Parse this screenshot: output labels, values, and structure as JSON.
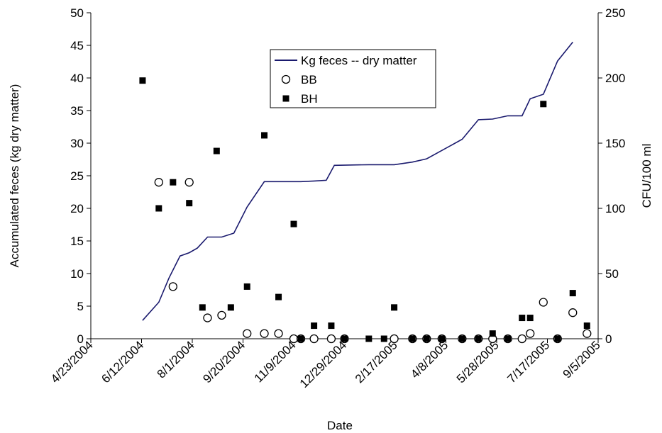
{
  "chart_data": {
    "type": "line",
    "xlabel": "Date",
    "ylabel_left": "Accumulated feces (kg dry matter)",
    "ylabel_right": "CFU/100 ml",
    "x_ticks": [
      "4/23/2004",
      "6/12/2004",
      "8/1/2004",
      "9/20/2004",
      "11/9/2004",
      "12/29/2004",
      "2/17/2005",
      "4/8/2005",
      "5/28/2005",
      "7/17/2005",
      "9/5/2005"
    ],
    "xlim": [
      "2004-04-23",
      "2005-09-05"
    ],
    "ylim_left": [
      0,
      50
    ],
    "ylim_right": [
      0,
      250
    ],
    "y_ticks_left": [
      "0",
      "5",
      "10",
      "15",
      "20",
      "25",
      "30",
      "35",
      "40",
      "45",
      "50"
    ],
    "y_ticks_right": [
      "0",
      "50",
      "100",
      "150",
      "200",
      "250"
    ],
    "grid": false,
    "legend_position": "top-center",
    "series": [
      {
        "name": "Kg feces -- dry matter",
        "kind": "line",
        "axis": "left",
        "color": "#1a1a6e",
        "x": [
          "2004-06-13",
          "2004-06-29",
          "2004-07-09",
          "2004-07-20",
          "2004-07-29",
          "2004-08-06",
          "2004-08-16",
          "2004-08-30",
          "2004-09-11",
          "2004-09-24",
          "2004-10-11",
          "2004-10-25",
          "2004-11-16",
          "2004-11-29",
          "2004-12-11",
          "2004-12-19",
          "2005-01-22",
          "2005-02-16",
          "2005-03-06",
          "2005-03-20",
          "2005-04-24",
          "2005-05-10",
          "2005-05-24",
          "2005-06-08",
          "2005-06-22",
          "2005-06-30",
          "2005-07-13",
          "2005-07-27",
          "2005-08-11"
        ],
        "y": [
          2.8,
          5.6,
          9.3,
          12.7,
          13.2,
          13.9,
          15.6,
          15.6,
          16.2,
          20.2,
          24.1,
          24.1,
          24.1,
          24.2,
          24.3,
          26.6,
          26.7,
          26.7,
          27.1,
          27.6,
          30.6,
          33.6,
          33.7,
          34.2,
          34.2,
          36.8,
          37.5,
          42.6,
          45.5
        ]
      },
      {
        "name": "BB",
        "kind": "scatter",
        "axis": "right",
        "marker": "open-circle",
        "x": [
          "2004-06-29",
          "2004-07-13",
          "2004-07-29",
          "2004-08-16",
          "2004-08-30",
          "2004-09-24",
          "2004-10-11",
          "2004-10-25",
          "2004-11-09",
          "2004-11-16",
          "2004-11-29",
          "2004-12-16",
          "2004-12-29",
          "2005-02-16",
          "2005-03-06",
          "2005-03-20",
          "2005-04-04",
          "2005-04-24",
          "2005-05-10",
          "2005-05-24",
          "2005-06-08",
          "2005-06-22",
          "2005-06-30",
          "2005-07-13",
          "2005-07-27",
          "2005-08-11",
          "2005-08-25"
        ],
        "y": [
          120,
          40,
          120,
          16,
          18,
          4,
          4,
          4,
          0,
          0,
          0,
          0,
          0,
          0,
          0,
          0,
          0,
          0,
          0,
          0,
          0,
          0,
          4,
          28,
          0,
          20,
          4
        ]
      },
      {
        "name": "BH",
        "kind": "scatter",
        "axis": "right",
        "marker": "filled-square",
        "x": [
          "2004-06-13",
          "2004-06-29",
          "2004-07-13",
          "2004-07-29",
          "2004-08-11",
          "2004-08-25",
          "2004-09-08",
          "2004-09-24",
          "2004-10-11",
          "2004-10-25",
          "2004-11-09",
          "2004-11-16",
          "2004-11-29",
          "2004-12-16",
          "2004-12-29",
          "2005-01-22",
          "2005-02-06",
          "2005-02-16",
          "2005-03-06",
          "2005-03-20",
          "2005-04-04",
          "2005-04-24",
          "2005-05-10",
          "2005-05-24",
          "2005-06-08",
          "2005-06-22",
          "2005-06-30",
          "2005-07-13",
          "2005-07-27",
          "2005-08-11",
          "2005-08-25"
        ],
        "y": [
          198,
          100,
          120,
          104,
          24,
          144,
          24,
          40,
          156,
          32,
          88,
          0,
          10,
          10,
          0,
          0,
          0,
          24,
          0,
          0,
          0,
          0,
          0,
          4,
          0,
          16,
          16,
          180,
          0,
          35,
          10
        ]
      }
    ]
  }
}
